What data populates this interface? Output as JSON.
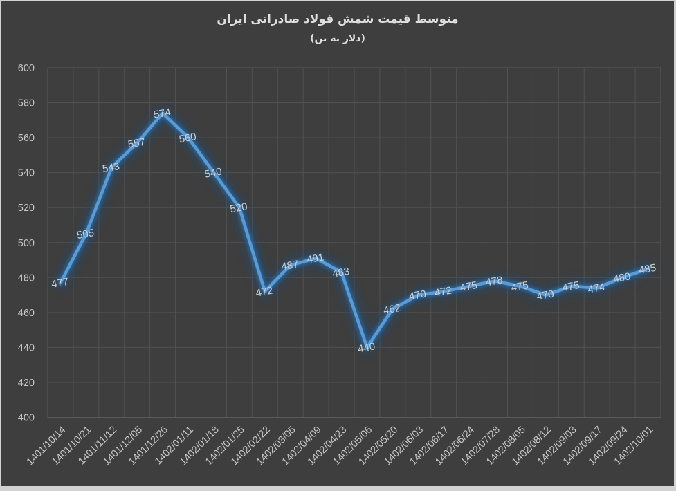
{
  "chart_data": {
    "type": "line",
    "title": "متوسط قیمت شمش فولاد صادراتی ایران",
    "subtitle": "(دلار به تن)",
    "xlabel": "",
    "ylabel": "",
    "categories": [
      "1401/10/14",
      "1401/10/21",
      "1401/11/12",
      "1401/12/05",
      "1401/12/26",
      "1402/01/11",
      "1402/01/18",
      "1402/01/25",
      "1402/02/22",
      "1402/03/05",
      "1402/04/09",
      "1402/04/23",
      "1402/05/06",
      "1402/05/20",
      "1402/06/03",
      "1402/06/17",
      "1402/06/24",
      "1402/07/28",
      "1402/08/05",
      "1402/08/12",
      "1402/09/03",
      "1402/09/17",
      "1402/09/24",
      "1402/10/01"
    ],
    "values": [
      477,
      505,
      543,
      557,
      574,
      560,
      540,
      520,
      472,
      487,
      491,
      483,
      440,
      462,
      470,
      472,
      475,
      478,
      475,
      470,
      475,
      474,
      480,
      485
    ],
    "data_labels_visible": true,
    "y_ticks": [
      600,
      580,
      560,
      540,
      520,
      500,
      480,
      460,
      440,
      420,
      400
    ],
    "ylim": [
      400,
      600
    ],
    "grid": true,
    "legend_position": "none",
    "colors": {
      "page_background": "#d2d2d2",
      "chart_background": "#3e3e3e",
      "gridline": "#525252",
      "plot_border": "#5a5a5a",
      "line": "#5b9bd5",
      "glow_inner": "#2e75b6",
      "glow_outer": "#1f4e79",
      "tick_text": "#c6c6c6",
      "data_label_text": "#cfcfcf",
      "title_text": "#dedede"
    }
  }
}
